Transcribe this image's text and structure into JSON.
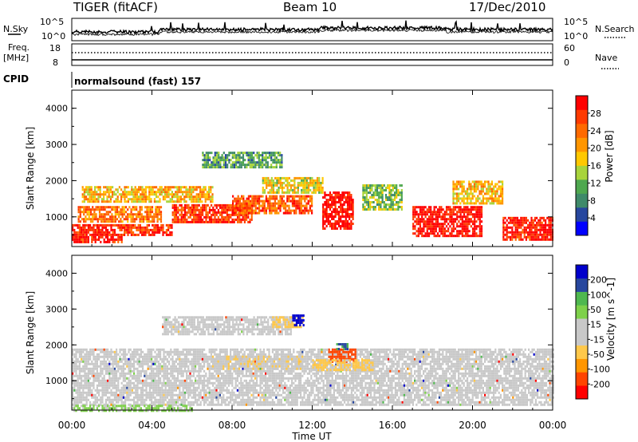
{
  "header": {
    "radar": "TIGER (fitACF)",
    "beam": "Beam 10",
    "date": "17/Dec/2010"
  },
  "noise_panel": {
    "left_label": "N.Sky",
    "right_label": "N.Search",
    "left_ticks": [
      "10^5",
      "10^0"
    ],
    "right_ticks": [
      "10^5",
      "10^0"
    ]
  },
  "freq_panel": {
    "left_label_line1": "Freq.",
    "left_label_line2": "[MHz]",
    "right_label": "Nave",
    "left_ticks": [
      "18",
      "8"
    ],
    "right_ticks": [
      "60",
      "0"
    ]
  },
  "cpid": {
    "label": "CPID",
    "value": "normalsound (fast) 157"
  },
  "colors": {
    "scale_power": [
      "#0000ff",
      "#27479e",
      "#3f8a6a",
      "#4fa84f",
      "#a8d43c",
      "#ffc800",
      "#ff9600",
      "#ff6a00",
      "#ff3a00",
      "#ff0000"
    ],
    "scale_velocity": [
      "#ff0000",
      "#ff4500",
      "#ff9600",
      "#ffc84a",
      "#c8c8c8",
      "#c8c8c8",
      "#7ed14a",
      "#4fb84f",
      "#27479e",
      "#0000cc"
    ],
    "ground_scatter": "#c8c8c8"
  },
  "chart_data": [
    {
      "type": "heatmap",
      "title": "",
      "xlabel": "Time UT",
      "ylabel": "Slant Range [km]",
      "xlim": [
        0,
        24
      ],
      "ylim": [
        180,
        4500
      ],
      "x_ticks": [
        "00:00",
        "04:00",
        "08:00",
        "12:00",
        "16:00",
        "20:00",
        "00:00"
      ],
      "y_ticks": [
        "1000",
        "2000",
        "3000",
        "4000"
      ],
      "colorbar_label": "Power [dB]",
      "colorbar_ticks": [
        "4",
        "8",
        "12",
        "16",
        "20",
        "24",
        "28"
      ],
      "colorbar_range": [
        0,
        30
      ],
      "scatter_regions": [
        {
          "t_start": 0.0,
          "t_end": 2.5,
          "r_low": 300,
          "r_high": 800,
          "value": 28
        },
        {
          "t_start": 0.3,
          "t_end": 4.5,
          "r_low": 900,
          "r_high": 1300,
          "value": 22
        },
        {
          "t_start": 0.5,
          "t_end": 7.0,
          "r_low": 1400,
          "r_high": 1850,
          "value": 18
        },
        {
          "t_start": 2.5,
          "t_end": 5.0,
          "r_low": 500,
          "r_high": 800,
          "value": 26
        },
        {
          "t_start": 5.0,
          "t_end": 9.0,
          "r_low": 850,
          "r_high": 1350,
          "value": 26
        },
        {
          "t_start": 6.5,
          "t_end": 10.5,
          "r_low": 2400,
          "r_high": 2800,
          "value": 10
        },
        {
          "t_start": 8.0,
          "t_end": 12.0,
          "r_low": 1100,
          "r_high": 1600,
          "value": 24
        },
        {
          "t_start": 9.5,
          "t_end": 12.5,
          "r_low": 1700,
          "r_high": 2100,
          "value": 16
        },
        {
          "t_start": 12.5,
          "t_end": 14.0,
          "r_low": 700,
          "r_high": 1700,
          "value": 29
        },
        {
          "t_start": 14.5,
          "t_end": 16.5,
          "r_low": 1200,
          "r_high": 1900,
          "value": 12
        },
        {
          "t_start": 17.0,
          "t_end": 20.5,
          "r_low": 500,
          "r_high": 1300,
          "value": 29
        },
        {
          "t_start": 19.0,
          "t_end": 21.5,
          "r_low": 1400,
          "r_high": 2000,
          "value": 18
        },
        {
          "t_start": 21.5,
          "t_end": 24.0,
          "r_low": 400,
          "r_high": 1000,
          "value": 28
        }
      ]
    },
    {
      "type": "heatmap",
      "title": "",
      "xlabel": "Time UT",
      "ylabel": "Slant Range [km]",
      "xlim": [
        0,
        24
      ],
      "ylim": [
        180,
        4500
      ],
      "x_ticks": [
        "00:00",
        "04:00",
        "08:00",
        "12:00",
        "16:00",
        "20:00",
        "00:00"
      ],
      "y_ticks": [
        "1000",
        "2000",
        "3000",
        "4000"
      ],
      "colorbar_label": "Velocity [m s^-1]",
      "colorbar_ticks": [
        "-200",
        "-100",
        "-50",
        "-15",
        "15",
        "50",
        "100",
        "200"
      ],
      "colorbar_range": [
        -250,
        250
      ],
      "scatter_regions": [
        {
          "t_start": 0.0,
          "t_end": 24.0,
          "r_low": 300,
          "r_high": 1900,
          "value": 0,
          "ground": true
        },
        {
          "t_start": 4.5,
          "t_end": 11.0,
          "r_low": 2300,
          "r_high": 2800,
          "value": 0,
          "ground": true
        },
        {
          "t_start": 7.0,
          "t_end": 11.5,
          "r_low": 1300,
          "r_high": 1700,
          "value": -40
        },
        {
          "t_start": 10.0,
          "t_end": 11.5,
          "r_low": 2500,
          "r_high": 2800,
          "value": -60
        },
        {
          "t_start": 11.0,
          "t_end": 11.6,
          "r_low": 2550,
          "r_high": 2850,
          "value": 230
        },
        {
          "t_start": 12.8,
          "t_end": 14.2,
          "r_low": 1500,
          "r_high": 1900,
          "value": -180
        },
        {
          "t_start": 13.2,
          "t_end": 13.8,
          "r_low": 1850,
          "r_high": 2050,
          "value": 150
        },
        {
          "t_start": 12.0,
          "t_end": 15.0,
          "r_low": 1300,
          "r_high": 1600,
          "value": -60
        },
        {
          "t_start": 0.0,
          "t_end": 6.0,
          "r_low": 180,
          "r_high": 330,
          "value": 60
        }
      ]
    }
  ]
}
